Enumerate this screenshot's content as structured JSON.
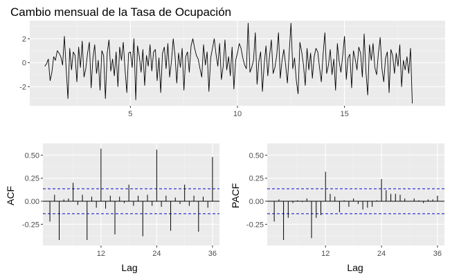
{
  "chart_data": [
    {
      "id": "series",
      "type": "line",
      "title": "Cambio mensual de la Tasa de Ocupación",
      "xlabel": "",
      "ylabel": "",
      "xlim": [
        0.3,
        19.7
      ],
      "ylim": [
        -3.6,
        3.5
      ],
      "x_ticks": [
        5,
        10,
        15
      ],
      "y_ticks": [
        -2,
        0,
        2
      ],
      "x_start": 1.0,
      "x_step": 0.08333,
      "grid": true,
      "line_color": "#000000",
      "values": [
        -0.3,
        -0.1,
        0.3,
        -1.5,
        -0.8,
        0.5,
        0.2,
        1.0,
        0.8,
        0.5,
        -0.2,
        2.2,
        -0.5,
        -3.0,
        1.2,
        -0.6,
        0.9,
        0.6,
        -1.6,
        1.3,
        -0.4,
        1.8,
        -1.2,
        -0.5,
        0.8,
        1.7,
        -2.1,
        0.4,
        1.5,
        -0.9,
        0.2,
        -2.3,
        1.0,
        0.6,
        -3.0,
        0.8,
        1.9,
        -0.7,
        0.3,
        -1.1,
        0.9,
        -2.0,
        1.3,
        0.2,
        1.7,
        -0.6,
        -2.5,
        0.8,
        0.9,
        -0.4,
        2.0,
        -3.1,
        1.4,
        0.5,
        -0.8,
        1.1,
        -1.9,
        0.6,
        -0.3,
        1.5,
        -0.7,
        0.9,
        1.1,
        -1.5,
        0.4,
        -2.5,
        0.8,
        1.3,
        -0.5,
        1.6,
        -1.2,
        0.1,
        2.0,
        0.6,
        -1.7,
        0.8,
        -0.4,
        1.2,
        -2.3,
        0.5,
        0.9,
        -0.8,
        1.4,
        2.0,
        1.2,
        0.6,
        0.3,
        -0.5,
        -1.2,
        1.5,
        -0.2,
        0.9,
        -2.4,
        0.4,
        1.2,
        2.0,
        0.7,
        -0.3,
        1.6,
        -1.4,
        -0.3,
        1.9,
        -0.6,
        0.5,
        -1.1,
        1.3,
        -2.2,
        0.2,
        0.8,
        1.6,
        1.2,
        0.4,
        -0.2,
        -0.5,
        3.3,
        -0.8,
        -0.4,
        0.2,
        2.5,
        -1.8,
        0.1,
        0.9,
        -2.4,
        -0.1,
        1.4,
        -1.1,
        0.6,
        1.9,
        -0.9,
        -0.4,
        0.6,
        2.5,
        -1.3,
        0.2,
        1.1,
        -0.2,
        -1.7,
        0.8,
        3.3,
        -0.5,
        0.4,
        -1.5,
        -2.6,
        1.7,
        0.9,
        -0.2,
        -1.9,
        1.2,
        -0.6,
        0.8,
        -1.3,
        0.5,
        1.2,
        0.9,
        -0.4,
        -1.6,
        0.7,
        2.5,
        -0.9,
        -0.2,
        1.1,
        -1.0,
        0.3,
        -2.3,
        1.6,
        0.1,
        -0.8,
        0.6,
        2.2,
        -1.4,
        0.4,
        0.7,
        -2.1,
        1.0,
        0.3,
        -0.6,
        1.3,
        0.8,
        -1.2,
        2.4,
        -0.7,
        -2.7,
        1.5,
        0.2,
        1.6,
        -0.4,
        -1.0,
        0.8,
        2.1,
        -0.5,
        -1.6,
        0.4,
        0.9,
        -2.5,
        1.1,
        0.6,
        -0.9,
        0.8,
        -0.3,
        1.5,
        -2.0,
        0.2,
        -0.6,
        0.5,
        -0.9,
        1.2,
        -3.4
      ]
    },
    {
      "id": "acf",
      "type": "bar",
      "title": "",
      "xlabel": "Lag",
      "ylabel": "ACF",
      "lags": [
        1,
        2,
        3,
        4,
        5,
        6,
        7,
        8,
        9,
        10,
        11,
        12,
        13,
        14,
        15,
        16,
        17,
        18,
        19,
        20,
        21,
        22,
        23,
        24,
        25,
        26,
        27,
        28,
        29,
        30,
        31,
        32,
        33,
        34,
        35,
        36
      ],
      "values": [
        -0.22,
        0.07,
        -0.42,
        0.02,
        0.03,
        0.2,
        -0.04,
        0.07,
        -0.42,
        0.05,
        -0.07,
        0.57,
        -0.08,
        0.06,
        -0.36,
        0.05,
        -0.02,
        0.18,
        -0.05,
        0.06,
        -0.38,
        0.07,
        -0.05,
        0.56,
        -0.06,
        0.06,
        -0.32,
        0.04,
        -0.03,
        0.18,
        -0.05,
        0.06,
        -0.33,
        0.05,
        -0.07,
        0.48
      ],
      "xlim": [
        -0.5,
        37.5
      ],
      "ylim": [
        -0.48,
        0.63
      ],
      "x_ticks": [
        12,
        24,
        36
      ],
      "y_ticks": [
        -0.25,
        0.0,
        0.25,
        0.5
      ],
      "y_tick_labels": [
        "-0.25",
        "0.00",
        "0.25",
        "0.50"
      ],
      "conf_limit": 0.135,
      "conf_color": "#0000cc",
      "grid": true
    },
    {
      "id": "pacf",
      "type": "bar",
      "title": "",
      "xlabel": "Lag",
      "ylabel": "PACF",
      "lags": [
        1,
        2,
        3,
        4,
        5,
        6,
        7,
        8,
        9,
        10,
        11,
        12,
        13,
        14,
        15,
        16,
        17,
        18,
        19,
        20,
        21,
        22,
        23,
        24,
        25,
        26,
        27,
        28,
        29,
        30,
        31,
        32,
        33,
        34,
        35,
        36
      ],
      "values": [
        -0.22,
        0.02,
        -0.42,
        -0.18,
        -0.02,
        0.01,
        -0.01,
        0.03,
        -0.4,
        -0.18,
        -0.15,
        0.32,
        0.08,
        0.05,
        -0.12,
        0.01,
        -0.06,
        0.03,
        -0.03,
        -0.09,
        -0.07,
        -0.06,
        0.01,
        0.24,
        0.12,
        0.08,
        0.08,
        0.07,
        0.03,
        0.0,
        0.03,
        0.01,
        -0.02,
        0.02,
        0.02,
        0.06
      ],
      "xlim": [
        -0.5,
        37.5
      ],
      "ylim": [
        -0.48,
        0.63
      ],
      "x_ticks": [
        12,
        24,
        36
      ],
      "y_ticks": [
        -0.25,
        0.0,
        0.25,
        0.5
      ],
      "y_tick_labels": [
        "-0.25",
        "0.00",
        "0.25",
        "0.50"
      ],
      "conf_limit": 0.135,
      "conf_color": "#0000cc",
      "grid": true
    }
  ]
}
